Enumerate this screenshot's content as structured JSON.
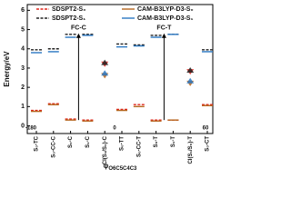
{
  "chart_data": {
    "type": "level",
    "y_label": "Energy/eV",
    "x_label": {
      "symbol": "φ",
      "subscript": "O6C5C4C3"
    },
    "x_marks": [
      "-180",
      "0",
      "60"
    ],
    "categories": [
      "S₀-TC",
      "S₀-CC-C",
      "S₀-C",
      "S₁-C",
      "CI(S₁/S₀)-C",
      "S₀-TT",
      "S₀-CC-T",
      "S₀-T",
      "S₁-T",
      "CI(S₁/S₀)-T",
      "S₀-CT"
    ],
    "triangle_categories": [
      4,
      9
    ],
    "series": [
      {
        "name": "SDSPT2-S₀",
        "color": "#e0261d",
        "dash": true,
        "values": [
          0.8,
          1.15,
          0.35,
          0.3,
          3.2,
          0.85,
          1.1,
          0.3,
          0.3,
          2.8,
          1.1
        ]
      },
      {
        "name": "SDSPT2-S₁",
        "color": "#222222",
        "dash": true,
        "values": [
          3.95,
          4.0,
          4.75,
          4.75,
          3.3,
          4.25,
          4.2,
          4.7,
          4.75,
          2.9,
          3.95
        ]
      },
      {
        "name": "CAM-B3LYP-D3-S₀",
        "color": "#b5651d",
        "dash": false,
        "values": [
          0.75,
          1.1,
          0.3,
          0.25,
          2.6,
          0.8,
          1.0,
          0.25,
          0.3,
          2.2,
          1.05
        ]
      },
      {
        "name": "CAM-B3LYP-D3-S₁",
        "color": "#2b78c2",
        "dash": false,
        "values": [
          3.8,
          3.85,
          4.6,
          4.7,
          2.75,
          4.1,
          4.15,
          4.6,
          4.75,
          2.35,
          3.85
        ]
      }
    ],
    "annotations": [
      {
        "text": "FC-C",
        "category": 3
      },
      {
        "text": "FC-T",
        "category": 8
      }
    ],
    "ylim": [
      -0.4,
      6.3
    ],
    "yticks": [
      0,
      1,
      2,
      3,
      4,
      5,
      6
    ]
  }
}
